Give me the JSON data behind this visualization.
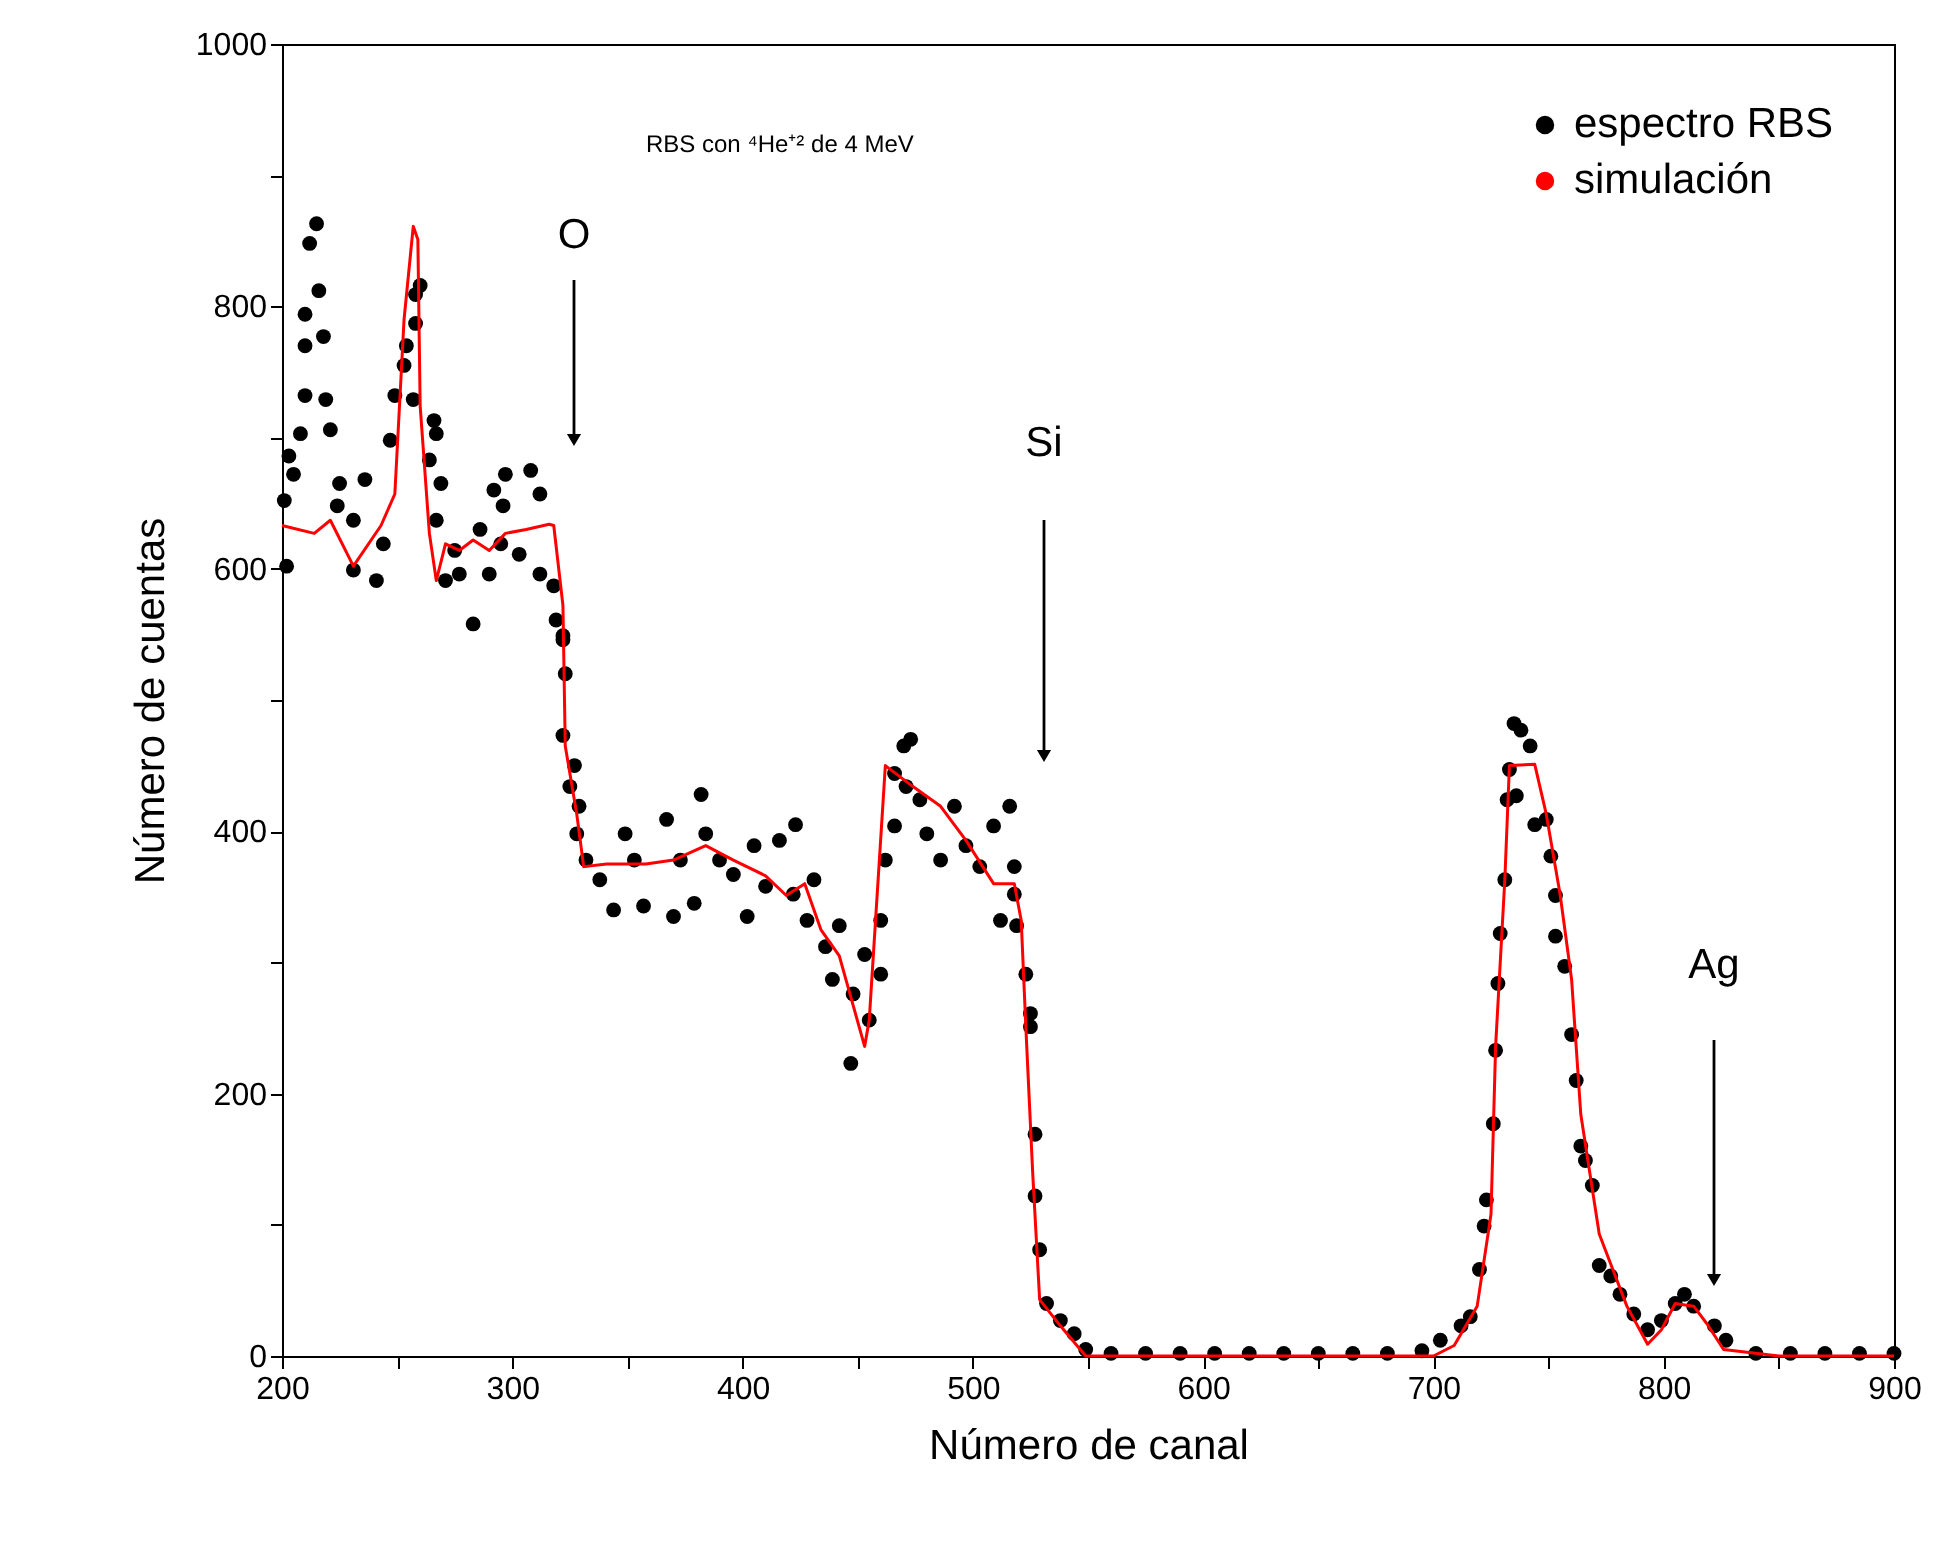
{
  "chart_data": {
    "type": "scatter",
    "title": "RBS con ⁴He⁺² de 4 MeV",
    "xlabel": "Número de canal",
    "ylabel": "Número de cuentas",
    "xlim": [
      200,
      900
    ],
    "ylim": [
      0,
      1000
    ],
    "xticks": [
      200,
      {
        "value": 250,
        "label": null
      },
      300,
      {
        "value": 350,
        "label": null
      },
      400,
      {
        "value": 450,
        "label": null
      },
      500,
      {
        "value": 550,
        "label": null
      },
      600,
      {
        "value": 650,
        "label": null
      },
      700,
      {
        "value": 750,
        "label": null
      },
      800,
      {
        "value": 850,
        "label": null
      },
      900
    ],
    "yticks": [
      0,
      {
        "value": 100,
        "label": null
      },
      200,
      {
        "value": 300,
        "label": null
      },
      400,
      {
        "value": 500,
        "label": null
      },
      600,
      {
        "value": 700,
        "label": null
      },
      800,
      {
        "value": 900,
        "label": null
      },
      1000
    ],
    "grid": false,
    "legend": "top right",
    "annotations": [
      "O",
      "Si",
      "Ag"
    ],
    "series": [
      {
        "name": "espectro RBS",
        "marker": "circle",
        "color": "#000000",
        "x": [
          201,
          202,
          203,
          205,
          208,
          210,
          210,
          210,
          212,
          215,
          216,
          218,
          219,
          221,
          224,
          225,
          231,
          231,
          236,
          241,
          244,
          247,
          249,
          253,
          254,
          257,
          258,
          258,
          260,
          264,
          266,
          267,
          267,
          269,
          271,
          275,
          277,
          283,
          286,
          290,
          292,
          295,
          296,
          297,
          303,
          308,
          312,
          312,
          318,
          319,
          322,
          322,
          323,
          322,
          327,
          325,
          329,
          328,
          332,
          338,
          344,
          349,
          353,
          357,
          367,
          370,
          373,
          379,
          382,
          384,
          390,
          396,
          402,
          405,
          410,
          416,
          423,
          422,
          431,
          428,
          436,
          442,
          439,
          448,
          453,
          447,
          455,
          460,
          460,
          462,
          466,
          466,
          470,
          473,
          471,
          477,
          480,
          486,
          492,
          497,
          503,
          509,
          516,
          518,
          512,
          518,
          519,
          523,
          525,
          525,
          527,
          527,
          529,
          532,
          538,
          544,
          549,
          560,
          575,
          590,
          605,
          620,
          635,
          650,
          665,
          680,
          695,
          703,
          712,
          716,
          720,
          722,
          723,
          726,
          727,
          728,
          729,
          731,
          732,
          733,
          735,
          736,
          738,
          742,
          744,
          749,
          751,
          753,
          753,
          757,
          760,
          762,
          764,
          766,
          769,
          772,
          777,
          781,
          787,
          793,
          799,
          805,
          809,
          813,
          822,
          827,
          840,
          855,
          870,
          885,
          900
        ],
        "values": [
          652,
          602,
          686,
          672,
          703,
          770,
          732,
          794,
          848,
          863,
          812,
          777,
          729,
          706,
          648,
          665,
          637,
          599,
          668,
          591,
          619,
          698,
          732,
          755,
          770,
          729,
          787,
          809,
          816,
          683,
          713,
          703,
          637,
          665,
          591,
          614,
          596,
          558,
          630,
          596,
          660,
          619,
          648,
          672,
          611,
          675,
          657,
          596,
          587,
          561,
          546,
          549,
          520,
          473,
          450,
          434,
          419,
          398,
          378,
          363,
          340,
          398,
          378,
          343,
          409,
          335,
          378,
          345,
          428,
          398,
          378,
          367,
          335,
          389,
          358,
          393,
          405,
          352,
          363,
          332,
          312,
          328,
          287,
          276,
          306,
          223,
          256,
          291,
          332,
          378,
          404,
          444,
          465,
          470,
          434,
          424,
          398,
          378,
          419,
          389,
          373,
          404,
          419,
          373,
          332,
          352,
          328,
          291,
          261,
          251,
          169,
          122,
          81,
          40,
          27,
          17,
          5,
          2,
          2,
          2,
          2,
          2,
          2,
          2,
          2,
          2,
          4,
          12,
          23,
          30,
          66,
          99,
          119,
          177,
          233,
          284,
          322,
          363,
          424,
          447,
          482,
          427,
          477,
          465,
          405,
          409,
          381,
          351,
          320,
          297,
          245,
          210,
          160,
          149,
          130,
          69,
          61,
          47,
          32,
          20,
          27,
          40,
          47,
          38,
          23,
          12,
          2,
          2,
          2,
          2,
          2
        ]
      },
      {
        "name": "simulación",
        "type": "line",
        "color": "#ff0000",
        "x": [
          200,
          214,
          221,
          231,
          243,
          249,
          253,
          257,
          259,
          260,
          264,
          267,
          271,
          277,
          283,
          290,
          297,
          306,
          316,
          318,
          322,
          323,
          328,
          331,
          341,
          358,
          370,
          384,
          396,
          410,
          419,
          427,
          434,
          442,
          453,
          455,
          462,
          474,
          486,
          497,
          509,
          518,
          521,
          523,
          526,
          529,
          538,
          549,
          600,
          650,
          700,
          709,
          719,
          725,
          727,
          731,
          733,
          744,
          749,
          755,
          760,
          764,
          772,
          784,
          793,
          799,
          805,
          813,
          819,
          826,
          850,
          900
        ],
        "values": [
          633,
          627,
          637,
          602,
          633,
          657,
          790,
          861,
          851,
          724,
          627,
          591,
          619,
          614,
          622,
          614,
          627,
          630,
          634,
          633,
          572,
          465,
          413,
          373,
          375,
          375,
          378,
          389,
          378,
          366,
          351,
          360,
          325,
          305,
          236,
          256,
          450,
          434,
          419,
          393,
          360,
          360,
          332,
          251,
          139,
          43,
          23,
          0,
          0,
          0,
          0,
          8,
          38,
          108,
          236,
          363,
          450,
          451,
          413,
          352,
          287,
          184,
          93,
          38,
          9,
          20,
          40,
          38,
          24,
          5,
          0,
          0
        ]
      }
    ]
  }
}
